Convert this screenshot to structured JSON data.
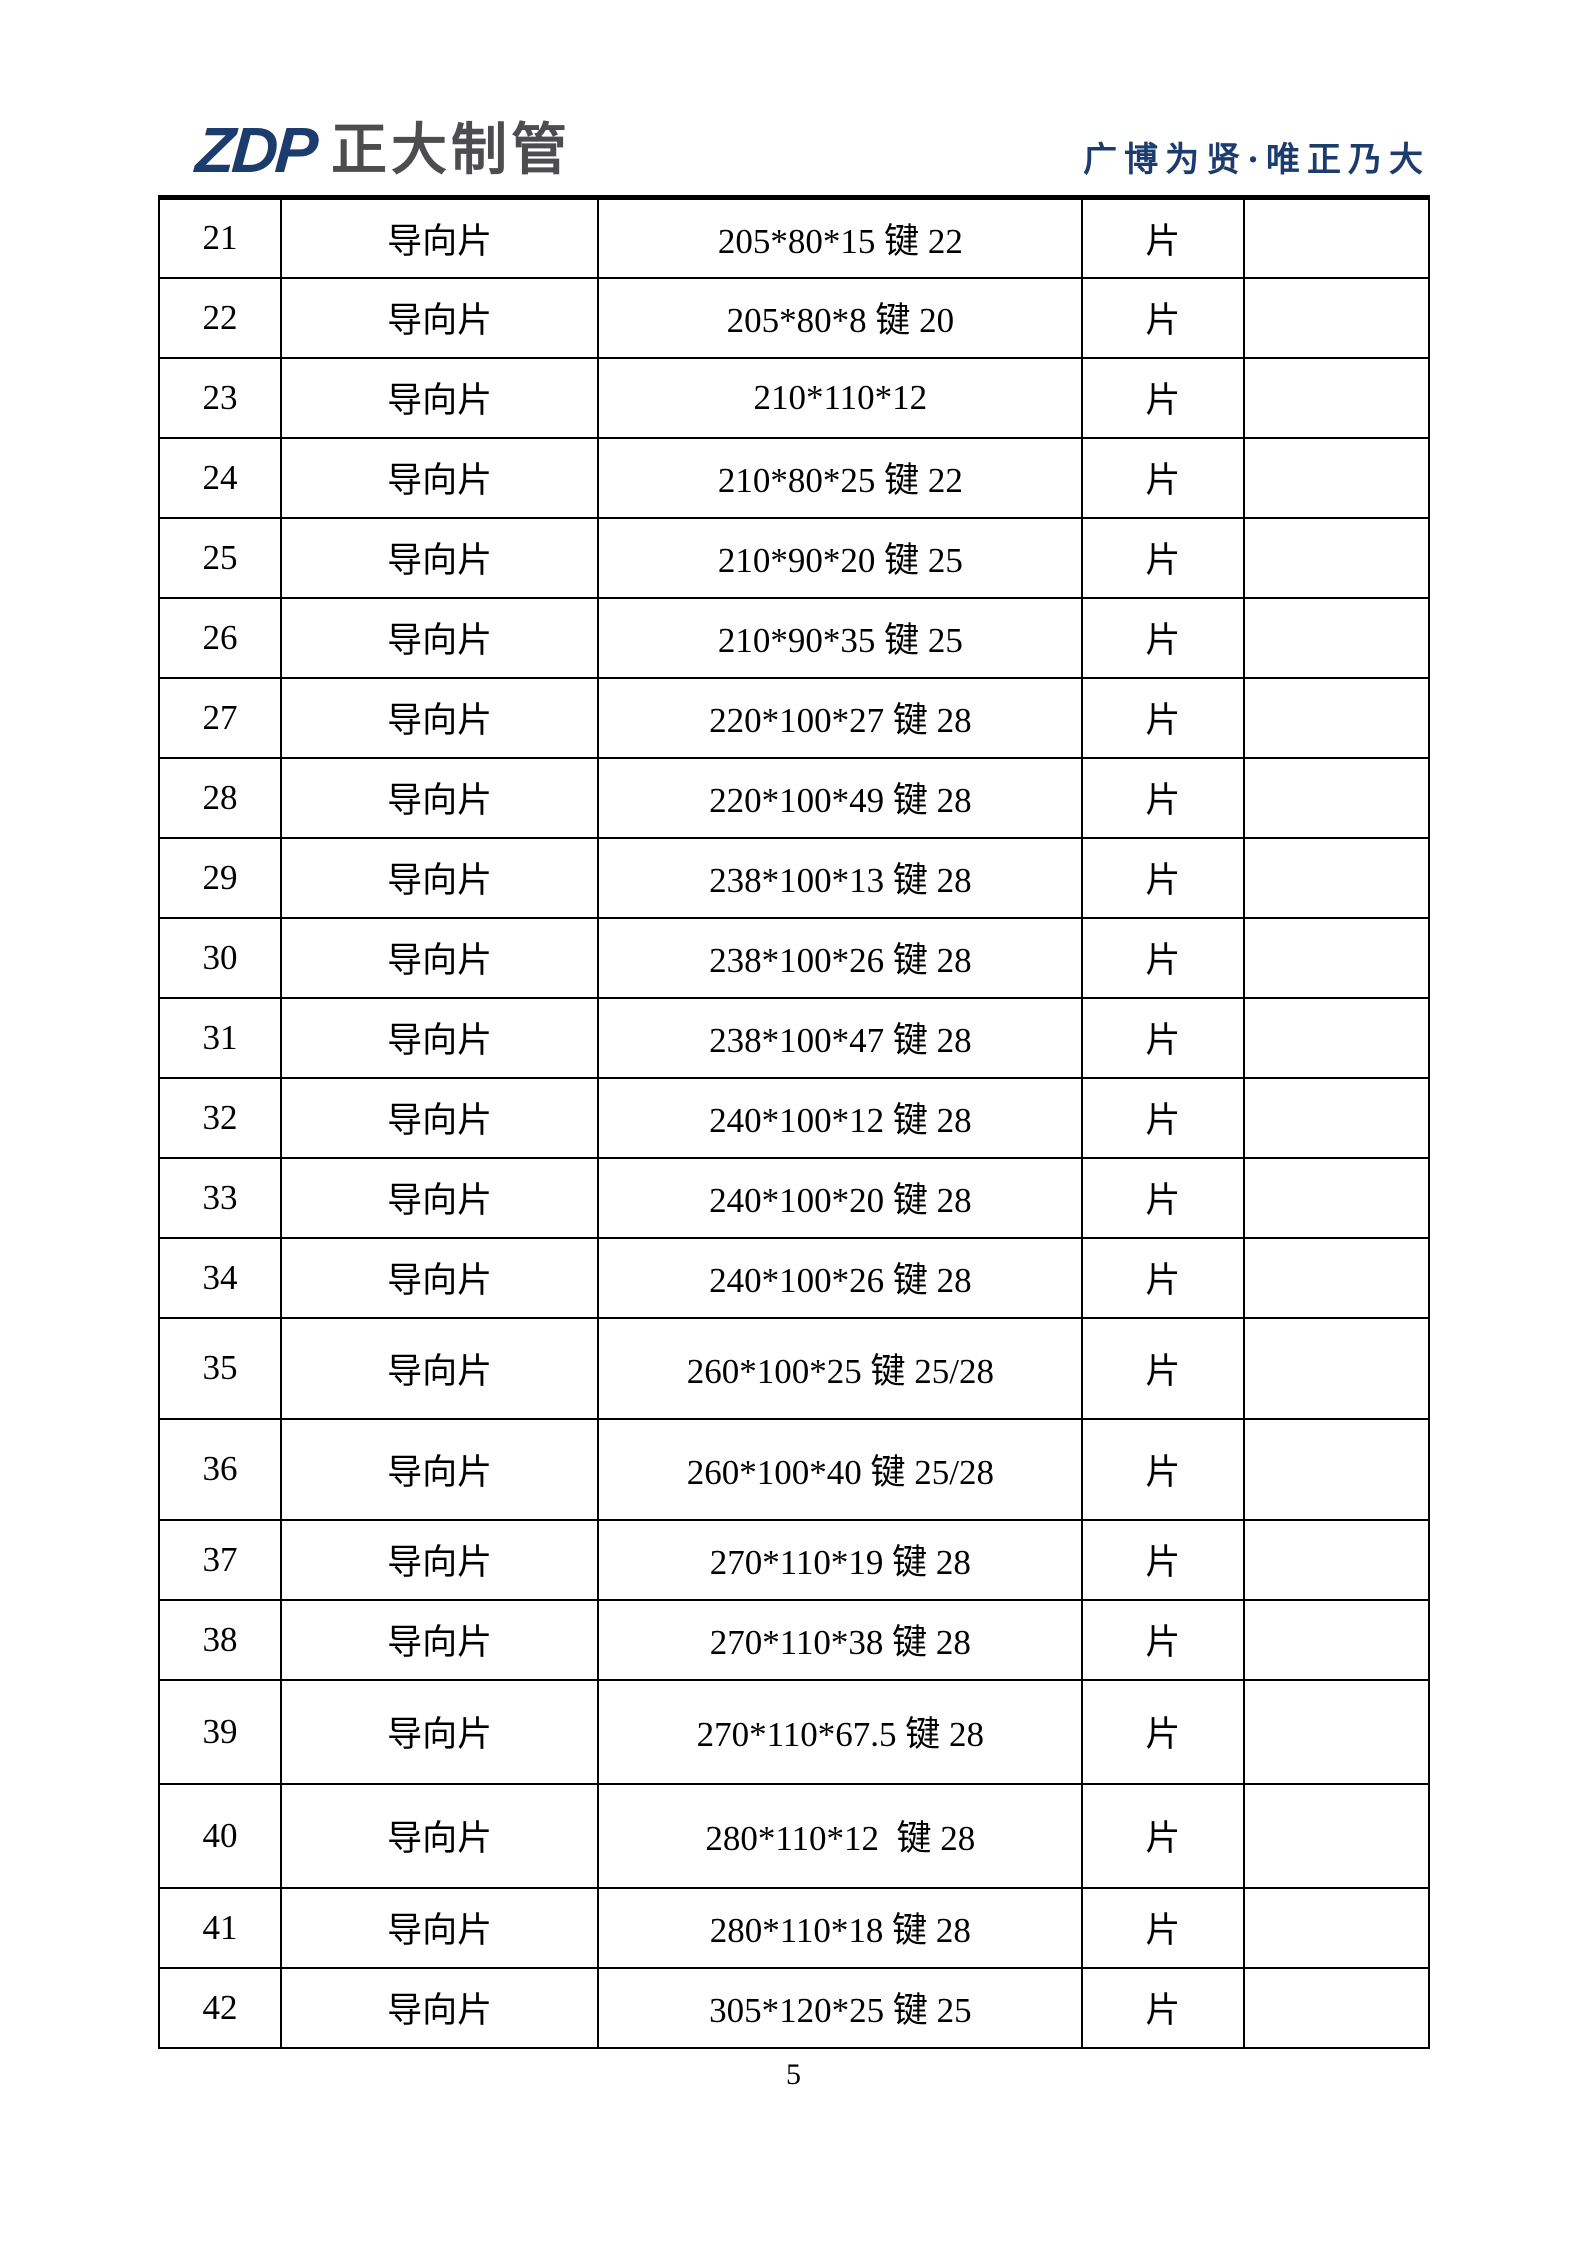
{
  "header": {
    "logo_text": "ZDP",
    "company_name": "正大制管",
    "slogan": "广博为贤·唯正乃大"
  },
  "table": {
    "rows": [
      {
        "no": "21",
        "name": "导向片",
        "spec": "205*80*15 键 22",
        "unit": "片",
        "note": ""
      },
      {
        "no": "22",
        "name": "导向片",
        "spec": "205*80*8 键 20",
        "unit": "片",
        "note": ""
      },
      {
        "no": "23",
        "name": "导向片",
        "spec": "210*110*12",
        "unit": "片",
        "note": ""
      },
      {
        "no": "24",
        "name": "导向片",
        "spec": "210*80*25 键 22",
        "unit": "片",
        "note": ""
      },
      {
        "no": "25",
        "name": "导向片",
        "spec": "210*90*20 键 25",
        "unit": "片",
        "note": ""
      },
      {
        "no": "26",
        "name": "导向片",
        "spec": "210*90*35 键 25",
        "unit": "片",
        "note": ""
      },
      {
        "no": "27",
        "name": "导向片",
        "spec": "220*100*27 键 28",
        "unit": "片",
        "note": ""
      },
      {
        "no": "28",
        "name": "导向片",
        "spec": "220*100*49 键 28",
        "unit": "片",
        "note": ""
      },
      {
        "no": "29",
        "name": "导向片",
        "spec": "238*100*13 键 28",
        "unit": "片",
        "note": ""
      },
      {
        "no": "30",
        "name": "导向片",
        "spec": "238*100*26 键 28",
        "unit": "片",
        "note": ""
      },
      {
        "no": "31",
        "name": "导向片",
        "spec": "238*100*47 键 28",
        "unit": "片",
        "note": ""
      },
      {
        "no": "32",
        "name": "导向片",
        "spec": "240*100*12 键 28",
        "unit": "片",
        "note": ""
      },
      {
        "no": "33",
        "name": "导向片",
        "spec": "240*100*20 键 28",
        "unit": "片",
        "note": ""
      },
      {
        "no": "34",
        "name": "导向片",
        "spec": "240*100*26 键 28",
        "unit": "片",
        "note": ""
      },
      {
        "no": "35",
        "name": "导向片",
        "spec": "260*100*25 键 25/28",
        "unit": "片",
        "note": ""
      },
      {
        "no": "36",
        "name": "导向片",
        "spec": "260*100*40 键 25/28",
        "unit": "片",
        "note": ""
      },
      {
        "no": "37",
        "name": "导向片",
        "spec": "270*110*19 键 28",
        "unit": "片",
        "note": ""
      },
      {
        "no": "38",
        "name": "导向片",
        "spec": "270*110*38 键 28",
        "unit": "片",
        "note": ""
      },
      {
        "no": "39",
        "name": "导向片",
        "spec": "270*110*67.5 键 28",
        "unit": "片",
        "note": ""
      },
      {
        "no": "40",
        "name": "导向片",
        "spec": "280*110*12  键 28",
        "unit": "片",
        "note": ""
      },
      {
        "no": "41",
        "name": "导向片",
        "spec": "280*110*18 键 28",
        "unit": "片",
        "note": ""
      },
      {
        "no": "42",
        "name": "导向片",
        "spec": "305*120*25 键 25",
        "unit": "片",
        "note": ""
      }
    ]
  },
  "footer": {
    "page_number": "5"
  },
  "colors": {
    "brand_navy": "#1c3c6e",
    "brand_gray": "#4d4d4f"
  }
}
